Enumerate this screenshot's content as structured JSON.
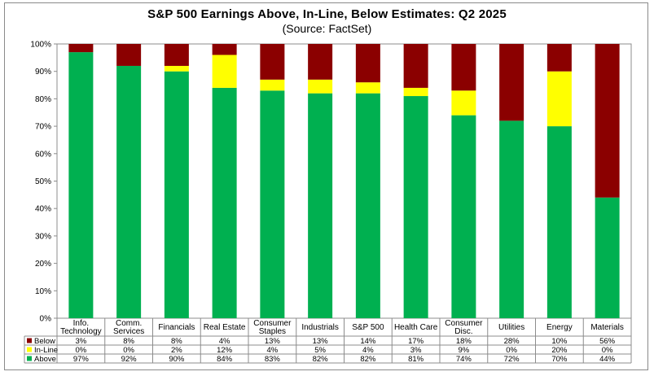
{
  "chart_data": {
    "type": "bar",
    "stacked": true,
    "percent_stacked": true,
    "title": "S&P 500 Earnings Above, In-Line, Below Estimates: Q2 2025",
    "subtitle": "(Source: FactSet)",
    "ylim": [
      0,
      100
    ],
    "yticks": [
      "0%",
      "10%",
      "20%",
      "30%",
      "40%",
      "50%",
      "60%",
      "70%",
      "80%",
      "90%",
      "100%"
    ],
    "categories": [
      [
        "Info.",
        "Technology"
      ],
      [
        "Comm.",
        "Services"
      ],
      [
        "Financials"
      ],
      [
        "Real Estate"
      ],
      [
        "Consumer",
        "Staples"
      ],
      [
        "Industrials"
      ],
      [
        "S&P 500"
      ],
      [
        "Health Care"
      ],
      [
        "Consumer",
        "Disc."
      ],
      [
        "Utilities"
      ],
      [
        "Energy"
      ],
      [
        "Materials"
      ]
    ],
    "series": [
      {
        "name": "Below",
        "color": "#8b0000",
        "values": [
          3,
          8,
          8,
          4,
          13,
          13,
          14,
          17,
          18,
          28,
          10,
          56
        ],
        "labels": [
          "3%",
          "8%",
          "8%",
          "4%",
          "13%",
          "13%",
          "14%",
          "17%",
          "18%",
          "28%",
          "10%",
          "56%"
        ]
      },
      {
        "name": "In-Line",
        "color": "#ffff00",
        "values": [
          0,
          0,
          2,
          12,
          4,
          5,
          4,
          3,
          9,
          0,
          20,
          0
        ],
        "labels": [
          "0%",
          "0%",
          "2%",
          "12%",
          "4%",
          "5%",
          "4%",
          "3%",
          "9%",
          "0%",
          "20%",
          "0%"
        ]
      },
      {
        "name": "Above",
        "color": "#00b050",
        "values": [
          97,
          92,
          90,
          84,
          83,
          82,
          82,
          81,
          74,
          72,
          70,
          44
        ],
        "labels": [
          "97%",
          "92%",
          "90%",
          "84%",
          "83%",
          "82%",
          "82%",
          "81%",
          "74%",
          "72%",
          "70%",
          "44%"
        ]
      }
    ],
    "stack_order_bottom_to_top": [
      "Above",
      "In-Line",
      "Below"
    ],
    "legend": "data-table"
  }
}
